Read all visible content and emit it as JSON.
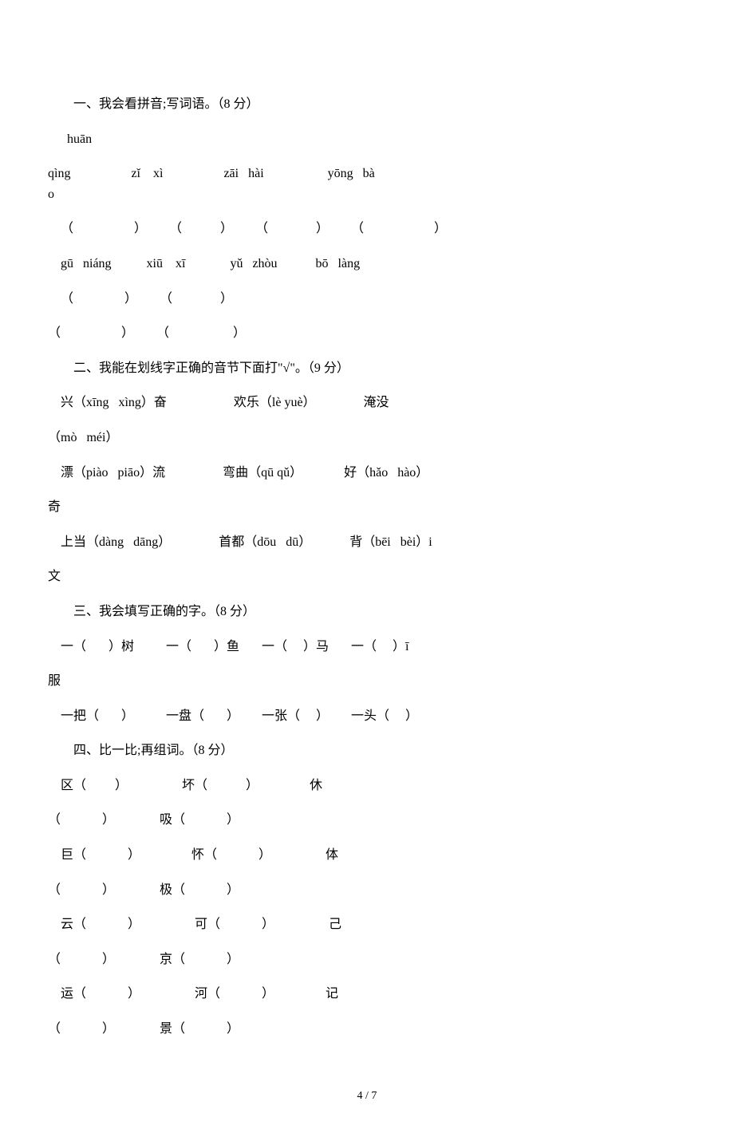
{
  "section1": {
    "title": "一、我会看拼音;写词语。（8 分）",
    "row1_pinyin_line1": "      huān",
    "row1_pinyin_line2": "qìng                   zǐ    xì                   zāi   hài                    yōng   bà",
    "row1_pinyin_line3": "o",
    "row1_blanks": "    （                   ）       （            ）       （               ）       （                      ）",
    "row2_pinyin": "    gū   niáng           xiū    xī              yǔ   zhòu            bō   làng",
    "row2_blanks_line1": "    （                ）       （               ）",
    "row2_blanks_line2": "（                   ）       （                    ）"
  },
  "section2": {
    "title": "二、我能在划线字正确的音节下面打\"√\"。（9 分）",
    "line1a": "    兴（xīng   xìng）奋                     欢乐（lè yuè）               淹没",
    "line1b": "（mò   méi）",
    "line2a": "    漂（piào   piāo）流                  弯曲（qū qǔ）             好（hǎo   hào）",
    "line2b": "奇",
    "line3a": "    上当（dàng   dāng）               首都（dōu   dū）            背（bēi   bèi）i",
    "line3b": "文"
  },
  "section3": {
    "title": "三、我会填写正确的字。（8 分）",
    "line1a": "    一（       ）树          一（       ）鱼       一（     ）马       一（     ）ī",
    "line1b": "服",
    "line2": "    一把（       ）          一盘（       ）       一张（     ）       一头（     ）"
  },
  "section4": {
    "title": "四、比一比;再组词。（8 分）",
    "line1a": "    区（         ）                 坏（            ）                休",
    "line1b": "（             ）              吸（             ）",
    "line2a": "    巨（             ）                怀（             ）                 体",
    "line2b": "（             ）              极（             ）",
    "line3a": "    云（             ）                 可（             ）                 己",
    "line3b": "（             ）              京（             ）",
    "line4a": "    运（             ）                 河（             ）                记",
    "line4b": "（             ）              景（             ）"
  },
  "footer": "4 / 7"
}
